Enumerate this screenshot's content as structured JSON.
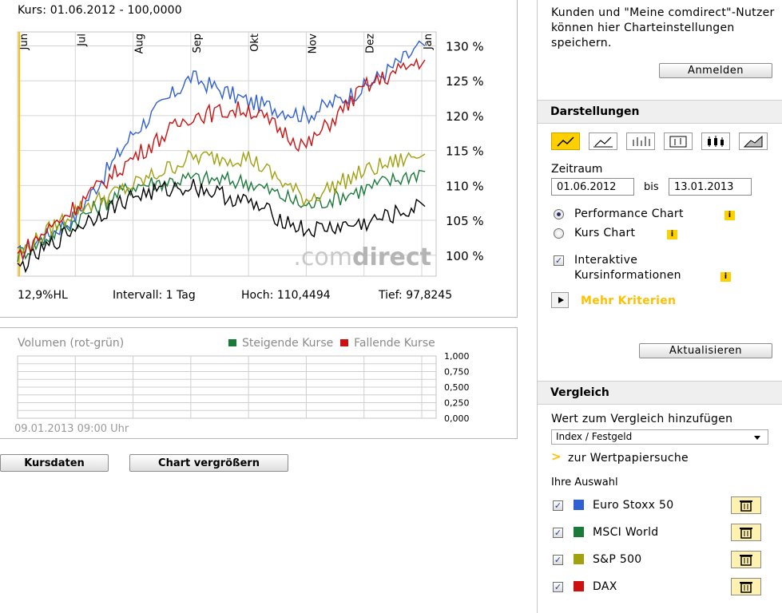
{
  "chart": {
    "title": "Kurs: 01.06.2012 - 100,0000",
    "months": [
      "Jun",
      "Jul",
      "Aug",
      "Sep",
      "Okt",
      "Nov",
      "Dez",
      "Jan"
    ],
    "y_ticks": [
      "130 %",
      "125 %",
      "120 %",
      "115 %",
      "110 %",
      "105 %",
      "100 %"
    ],
    "watermark_a": ".com",
    "watermark_b": "direct",
    "stats": {
      "hl": "12,9%HL",
      "intervall": "Intervall: 1 Tag",
      "hoch": "Hoch: 110,4494",
      "tief": "Tief: 97,8245"
    },
    "colors": {
      "euro_stoxx": "#2f5fd0",
      "msci": "#1a7a3a",
      "sp500": "#a0a010",
      "dax": "#cc1111",
      "base": "#000000",
      "marker": "#ffc000"
    }
  },
  "chart_data": {
    "type": "line",
    "x": [
      "Jun",
      "Jul",
      "Aug",
      "Sep",
      "Okt",
      "Nov",
      "Dez",
      "Jan"
    ],
    "ylim": [
      97,
      132
    ],
    "y_unit": "%",
    "series": [
      {
        "name": "Euro Stoxx 50",
        "color": "#2f5fd0",
        "values": [
          100,
          105.5,
          117.5,
          125.5,
          122,
          120,
          124,
          130
        ]
      },
      {
        "name": "MSCI World",
        "color": "#1a7a3a",
        "values": [
          100,
          105,
          110,
          111,
          110.5,
          107,
          109.5,
          112
        ]
      },
      {
        "name": "S&P 500",
        "color": "#a0a010",
        "values": [
          100,
          106.5,
          110,
          114,
          114,
          108,
          112,
          114.5
        ]
      },
      {
        "name": "DAX",
        "color": "#cc1111",
        "values": [
          100,
          107,
          114,
          120,
          121,
          115.5,
          124,
          128
        ]
      },
      {
        "name": "",
        "color": "#000000",
        "values": [
          98,
          104,
          108.5,
          110,
          107.5,
          103.5,
          104.5,
          107
        ]
      }
    ]
  },
  "volume": {
    "title": "Volumen (rot-grün)",
    "legend_up": "Steigende Kurse",
    "legend_down": "Fallende Kurse",
    "y_ticks": [
      "1,000",
      "0,750",
      "0,500",
      "0,250",
      "0,000"
    ],
    "timestamp": "09.01.2013 09:00 Uhr"
  },
  "buttons": {
    "kursdaten": "Kursdaten",
    "vergroessern": "Chart vergrößern",
    "anmelden": "Anmelden",
    "aktualisieren": "Aktualisieren"
  },
  "sidebar": {
    "login_text": "Kunden und \"Meine comdirect\"-Nutzer können hier Charteinstellungen speichern.",
    "darstellungen": "Darstellungen",
    "zeitraum": "Zeitraum",
    "date_from": "01.06.2012",
    "bis": "bis",
    "date_to": "13.01.2013",
    "performance_chart": "Performance Chart",
    "kurs_chart": "Kurs Chart",
    "interaktive_1": "Interaktive",
    "interaktive_2": "Kursinformationen",
    "info_glyph": "i",
    "mehr_kriterien": "Mehr Kriterien",
    "vergleich": "Vergleich",
    "vergleich_label": "Wert zum Vergleich hinzufügen",
    "select_value": "Index / Festgeld",
    "search_arrow": ">",
    "search_link": "zur Wertpapiersuche",
    "ihre_auswahl": "Ihre Auswahl",
    "selection": [
      {
        "name": "Euro Stoxx 50",
        "color": "#2f5fd0"
      },
      {
        "name": "MSCI World",
        "color": "#1a7a3a"
      },
      {
        "name": "S&P 500",
        "color": "#a0a010"
      },
      {
        "name": "DAX",
        "color": "#cc1111"
      }
    ]
  }
}
